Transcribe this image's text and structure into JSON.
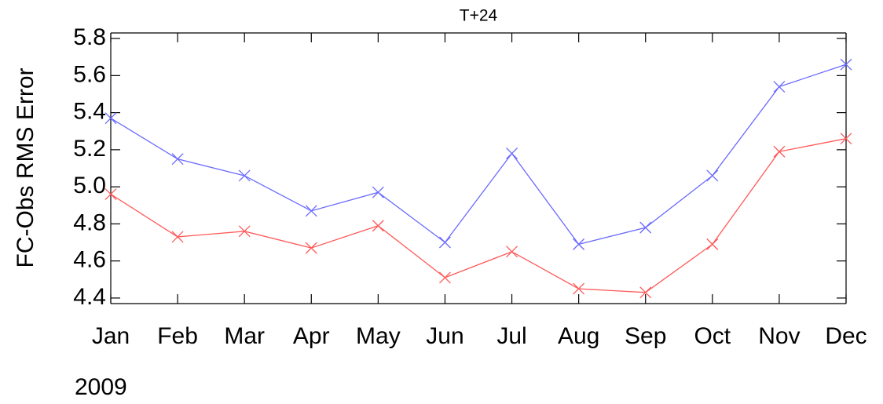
{
  "chart_data": {
    "type": "line",
    "title": "T+24",
    "y_label": "FC-Obs RMS Error",
    "x_label": "2009",
    "categories": [
      "Jan",
      "Feb",
      "Mar",
      "Apr",
      "May",
      "Jun",
      "Jul",
      "Aug",
      "Sep",
      "Oct",
      "Nov",
      "Dec"
    ],
    "series": [
      {
        "color": "#6a6aff",
        "values": [
          5.37,
          5.15,
          5.06,
          4.87,
          4.97,
          4.7,
          5.18,
          4.69,
          4.78,
          5.06,
          5.54,
          5.66
        ]
      },
      {
        "color": "#ff5a5a",
        "values": [
          4.96,
          4.73,
          4.76,
          4.67,
          4.79,
          4.51,
          4.65,
          4.45,
          4.43,
          4.69,
          5.19,
          5.26
        ]
      }
    ],
    "ylim": [
      4.37,
      5.83
    ],
    "yticks": [
      4.4,
      4.6,
      4.8,
      {
        "value": 5,
        "label": "5.0"
      },
      5.2,
      5.4,
      5.6,
      5.8
    ],
    "marker": "x"
  }
}
